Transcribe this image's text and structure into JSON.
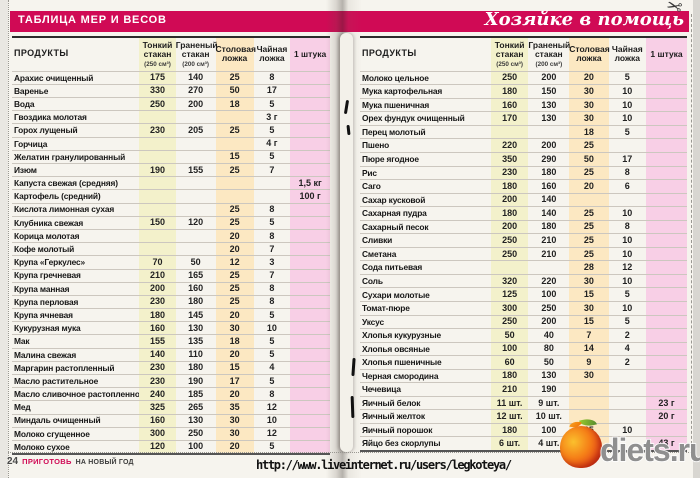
{
  "page": {
    "left_header": "ТАБЛИЦА МЕР И ВЕСОВ",
    "right_header": "Хозяйке в помощь",
    "footer": {
      "page_number": "24",
      "magazine_name": "ПРИГОТОВЬ",
      "issue_text": "НА НОВЫЙ ГОД"
    },
    "watermark_url": "http://www.liveinternet.ru/users/legkoteya/",
    "site_logo_text": "diets.ru",
    "scissors_icon": "✂"
  },
  "colors": {
    "header_bar": "#d00a55",
    "col_thin_bg": "#f3f1cb",
    "col_tbsp_bg": "#fce8c2",
    "col_piece_bg": "#f8cfe6"
  },
  "table_columns": [
    {
      "key": "product",
      "label": "ПРОДУКТЫ",
      "sub": ""
    },
    {
      "key": "thin",
      "label": "Тонкий стакан",
      "sub": "(250 см³)"
    },
    {
      "key": "faceted",
      "label": "Граненый стакан",
      "sub": "(200 см³)"
    },
    {
      "key": "tbsp",
      "label": "Столовая ложка",
      "sub": ""
    },
    {
      "key": "tsp",
      "label": "Чайная ложка",
      "sub": ""
    },
    {
      "key": "piece",
      "label": "1 штука",
      "sub": ""
    }
  ],
  "left_page": {
    "rows": [
      {
        "product": "Арахис очищенный",
        "thin": "175",
        "faceted": "140",
        "tbsp": "25",
        "tsp": "8",
        "piece": ""
      },
      {
        "product": "Варенье",
        "thin": "330",
        "faceted": "270",
        "tbsp": "50",
        "tsp": "17",
        "piece": ""
      },
      {
        "product": "Вода",
        "thin": "250",
        "faceted": "200",
        "tbsp": "18",
        "tsp": "5",
        "piece": ""
      },
      {
        "product": "Гвоздика молотая",
        "thin": "",
        "faceted": "",
        "tbsp": "",
        "tsp": "3 г",
        "piece": ""
      },
      {
        "product": "Горох лущеный",
        "thin": "230",
        "faceted": "205",
        "tbsp": "25",
        "tsp": "5",
        "piece": ""
      },
      {
        "product": "Горчица",
        "thin": "",
        "faceted": "",
        "tbsp": "",
        "tsp": "4 г",
        "piece": ""
      },
      {
        "product": "Желатин гранулированный",
        "thin": "",
        "faceted": "",
        "tbsp": "15",
        "tsp": "5",
        "piece": ""
      },
      {
        "product": "Изюм",
        "thin": "190",
        "faceted": "155",
        "tbsp": "25",
        "tsp": "7",
        "piece": ""
      },
      {
        "product": "Капуста свежая (средняя)",
        "thin": "",
        "faceted": "",
        "tbsp": "",
        "tsp": "",
        "piece": "1,5 кг"
      },
      {
        "product": "Картофель (средний)",
        "thin": "",
        "faceted": "",
        "tbsp": "",
        "tsp": "",
        "piece": "100 г"
      },
      {
        "product": "Кислота лимонная сухая",
        "thin": "",
        "faceted": "",
        "tbsp": "25",
        "tsp": "8",
        "piece": ""
      },
      {
        "product": "Клубника свежая",
        "thin": "150",
        "faceted": "120",
        "tbsp": "25",
        "tsp": "5",
        "piece": ""
      },
      {
        "product": "Корица молотая",
        "thin": "",
        "faceted": "",
        "tbsp": "20",
        "tsp": "8",
        "piece": ""
      },
      {
        "product": "Кофе молотый",
        "thin": "",
        "faceted": "",
        "tbsp": "20",
        "tsp": "7",
        "piece": ""
      },
      {
        "product": "Крупа «Геркулес»",
        "thin": "70",
        "faceted": "50",
        "tbsp": "12",
        "tsp": "3",
        "piece": ""
      },
      {
        "product": "Крупа гречневая",
        "thin": "210",
        "faceted": "165",
        "tbsp": "25",
        "tsp": "7",
        "piece": ""
      },
      {
        "product": "Крупа манная",
        "thin": "200",
        "faceted": "160",
        "tbsp": "25",
        "tsp": "8",
        "piece": ""
      },
      {
        "product": "Крупа перловая",
        "thin": "230",
        "faceted": "180",
        "tbsp": "25",
        "tsp": "8",
        "piece": ""
      },
      {
        "product": "Крупа ячневая",
        "thin": "180",
        "faceted": "145",
        "tbsp": "20",
        "tsp": "5",
        "piece": ""
      },
      {
        "product": "Кукурузная мука",
        "thin": "160",
        "faceted": "130",
        "tbsp": "30",
        "tsp": "10",
        "piece": ""
      },
      {
        "product": "Мак",
        "thin": "155",
        "faceted": "135",
        "tbsp": "18",
        "tsp": "5",
        "piece": ""
      },
      {
        "product": "Малина свежая",
        "thin": "140",
        "faceted": "110",
        "tbsp": "20",
        "tsp": "5",
        "piece": ""
      },
      {
        "product": "Маргарин растопленный",
        "thin": "230",
        "faceted": "180",
        "tbsp": "15",
        "tsp": "4",
        "piece": ""
      },
      {
        "product": "Масло растительное",
        "thin": "230",
        "faceted": "190",
        "tbsp": "17",
        "tsp": "5",
        "piece": ""
      },
      {
        "product": "Масло сливочное растопленное",
        "thin": "240",
        "faceted": "185",
        "tbsp": "20",
        "tsp": "8",
        "piece": ""
      },
      {
        "product": "Мед",
        "thin": "325",
        "faceted": "265",
        "tbsp": "35",
        "tsp": "12",
        "piece": ""
      },
      {
        "product": "Миндаль очищенный",
        "thin": "160",
        "faceted": "130",
        "tbsp": "30",
        "tsp": "10",
        "piece": ""
      },
      {
        "product": "Молоко сгущенное",
        "thin": "300",
        "faceted": "250",
        "tbsp": "30",
        "tsp": "12",
        "piece": ""
      },
      {
        "product": "Молоко сухое",
        "thin": "120",
        "faceted": "100",
        "tbsp": "20",
        "tsp": "5",
        "piece": ""
      }
    ]
  },
  "right_page": {
    "rows": [
      {
        "product": "Молоко цельное",
        "thin": "250",
        "faceted": "200",
        "tbsp": "20",
        "tsp": "5",
        "piece": ""
      },
      {
        "product": "Мука картофельная",
        "thin": "180",
        "faceted": "150",
        "tbsp": "30",
        "tsp": "10",
        "piece": ""
      },
      {
        "product": "Мука пшеничная",
        "thin": "160",
        "faceted": "130",
        "tbsp": "30",
        "tsp": "10",
        "piece": ""
      },
      {
        "product": "Орех фундук очищенный",
        "thin": "170",
        "faceted": "130",
        "tbsp": "30",
        "tsp": "10",
        "piece": ""
      },
      {
        "product": "Перец молотый",
        "thin": "",
        "faceted": "",
        "tbsp": "18",
        "tsp": "5",
        "piece": ""
      },
      {
        "product": "Пшено",
        "thin": "220",
        "faceted": "200",
        "tbsp": "25",
        "tsp": "",
        "piece": ""
      },
      {
        "product": "Пюре ягодное",
        "thin": "350",
        "faceted": "290",
        "tbsp": "50",
        "tsp": "17",
        "piece": ""
      },
      {
        "product": "Рис",
        "thin": "230",
        "faceted": "180",
        "tbsp": "25",
        "tsp": "8",
        "piece": ""
      },
      {
        "product": "Саго",
        "thin": "180",
        "faceted": "160",
        "tbsp": "20",
        "tsp": "6",
        "piece": ""
      },
      {
        "product": "Сахар кусковой",
        "thin": "200",
        "faceted": "140",
        "tbsp": "",
        "tsp": "",
        "piece": ""
      },
      {
        "product": "Сахарная пудра",
        "thin": "180",
        "faceted": "140",
        "tbsp": "25",
        "tsp": "10",
        "piece": ""
      },
      {
        "product": "Сахарный песок",
        "thin": "200",
        "faceted": "180",
        "tbsp": "25",
        "tsp": "8",
        "piece": ""
      },
      {
        "product": "Сливки",
        "thin": "250",
        "faceted": "210",
        "tbsp": "25",
        "tsp": "10",
        "piece": ""
      },
      {
        "product": "Сметана",
        "thin": "250",
        "faceted": "210",
        "tbsp": "25",
        "tsp": "10",
        "piece": ""
      },
      {
        "product": "Сода питьевая",
        "thin": "",
        "faceted": "",
        "tbsp": "28",
        "tsp": "12",
        "piece": ""
      },
      {
        "product": "Соль",
        "thin": "320",
        "faceted": "220",
        "tbsp": "30",
        "tsp": "10",
        "piece": ""
      },
      {
        "product": "Сухари молотые",
        "thin": "125",
        "faceted": "100",
        "tbsp": "15",
        "tsp": "5",
        "piece": ""
      },
      {
        "product": "Томат-пюре",
        "thin": "300",
        "faceted": "250",
        "tbsp": "30",
        "tsp": "10",
        "piece": ""
      },
      {
        "product": "Уксус",
        "thin": "250",
        "faceted": "200",
        "tbsp": "15",
        "tsp": "5",
        "piece": ""
      },
      {
        "product": "Хлопья кукурузные",
        "thin": "50",
        "faceted": "40",
        "tbsp": "7",
        "tsp": "2",
        "piece": ""
      },
      {
        "product": "Хлопья овсяные",
        "thin": "100",
        "faceted": "80",
        "tbsp": "14",
        "tsp": "4",
        "piece": ""
      },
      {
        "product": "Хлопья пшеничные",
        "thin": "60",
        "faceted": "50",
        "tbsp": "9",
        "tsp": "2",
        "piece": ""
      },
      {
        "product": "Черная смородина",
        "thin": "180",
        "faceted": "130",
        "tbsp": "30",
        "tsp": "",
        "piece": ""
      },
      {
        "product": "Чечевица",
        "thin": "210",
        "faceted": "190",
        "tbsp": "",
        "tsp": "",
        "piece": ""
      },
      {
        "product": "Яичный белок",
        "thin": "11 шт.",
        "faceted": "9 шт.",
        "tbsp": "",
        "tsp": "",
        "piece": "23 г"
      },
      {
        "product": "Яичный желток",
        "thin": "12 шт.",
        "faceted": "10 шт.",
        "tbsp": "",
        "tsp": "",
        "piece": "20 г"
      },
      {
        "product": "Яичный порошок",
        "thin": "180",
        "faceted": "100",
        "tbsp": "25",
        "tsp": "10",
        "piece": ""
      },
      {
        "product": "Яйцо без скорлупы",
        "thin": "6 шт.",
        "faceted": "4 шт.",
        "tbsp": "",
        "tsp": "",
        "piece": "43 г"
      }
    ]
  }
}
